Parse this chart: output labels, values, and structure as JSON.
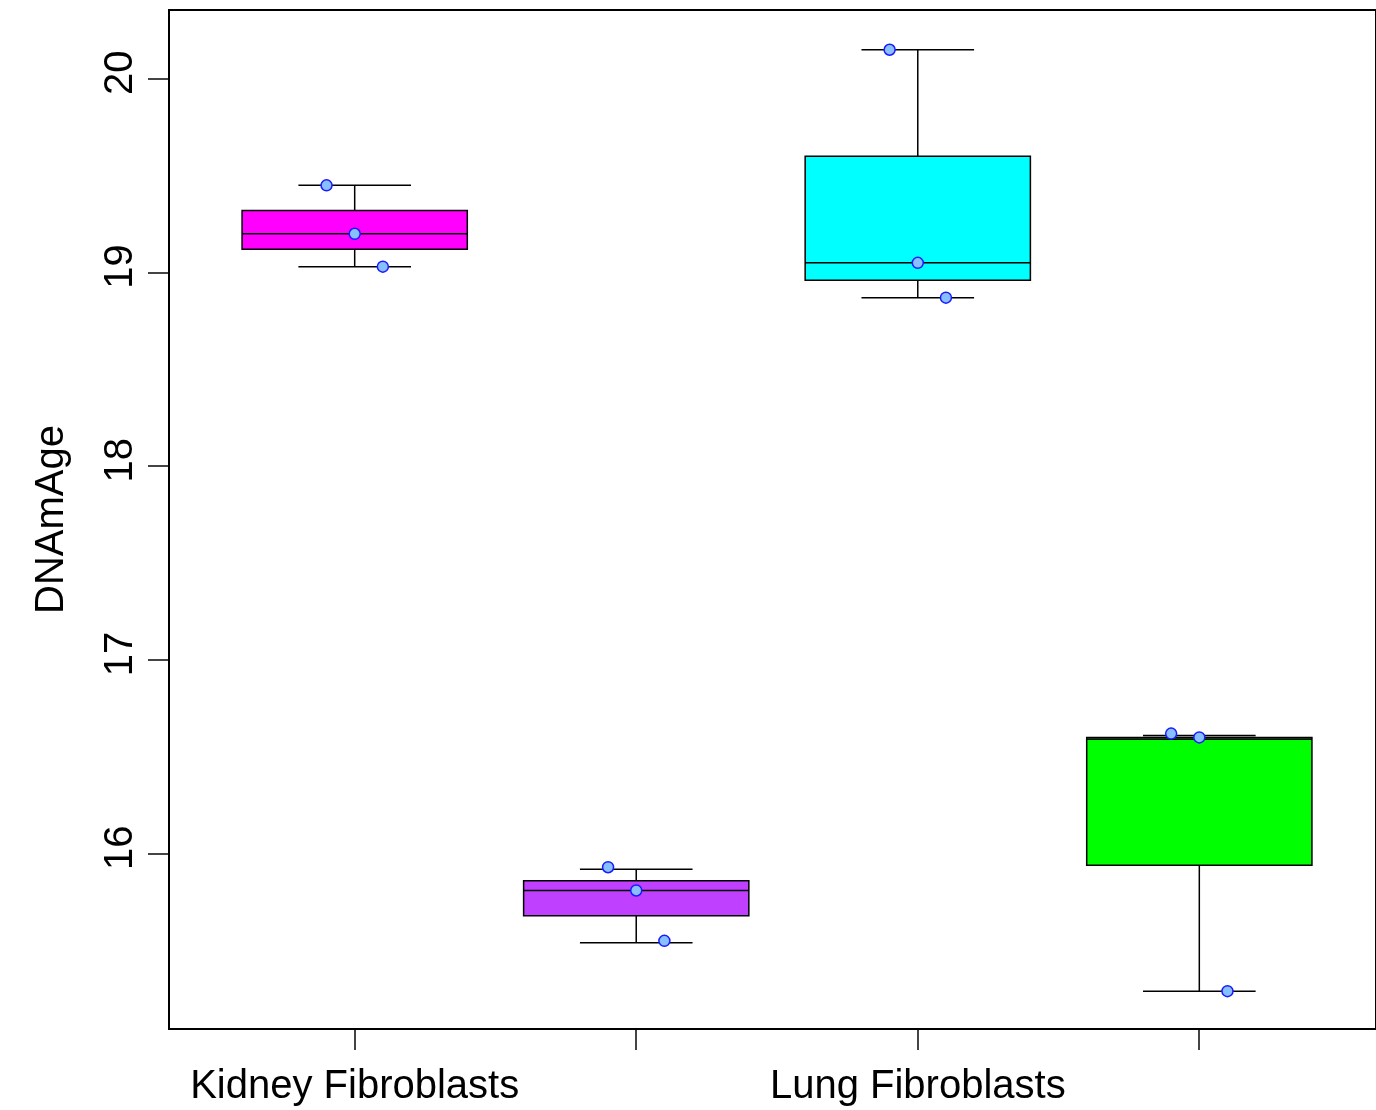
{
  "chart_data": {
    "type": "box",
    "ylabel": "DNAmAge",
    "categories": [
      "Kidney Fibroblasts",
      null,
      "Lung Fibroblasts",
      null
    ],
    "colors": [
      "#ff00ff",
      "#bf40ff",
      "#00ffff",
      "#00ff00"
    ],
    "boxes": [
      {
        "low": 19.03,
        "q1": 19.12,
        "median": 19.2,
        "q3": 19.32,
        "high": 19.45
      },
      {
        "low": 15.54,
        "q1": 15.68,
        "median": 15.81,
        "q3": 15.86,
        "high": 15.92
      },
      {
        "low": 18.87,
        "q1": 18.96,
        "median": 19.05,
        "q3": 19.6,
        "high": 20.15
      },
      {
        "low": 15.29,
        "q1": 15.94,
        "median": 16.59,
        "q3": 16.6,
        "high": 16.61
      }
    ],
    "series": [
      {
        "type": "scatter",
        "color": "#87bfff",
        "values": [
          19.45,
          15.93,
          20.15,
          16.62
        ]
      },
      {
        "type": "scatter",
        "color": "#87bfff",
        "values": [
          19.2,
          15.81,
          19.05,
          16.6
        ]
      },
      {
        "type": "scatter",
        "color": "#87bfff",
        "values": [
          19.03,
          15.55,
          18.87,
          15.29
        ]
      }
    ],
    "marker": "circle",
    "ylim": [
      15.1,
      20.35
    ],
    "yticks": [
      16,
      17,
      18,
      19,
      20
    ],
    "grid": false
  }
}
